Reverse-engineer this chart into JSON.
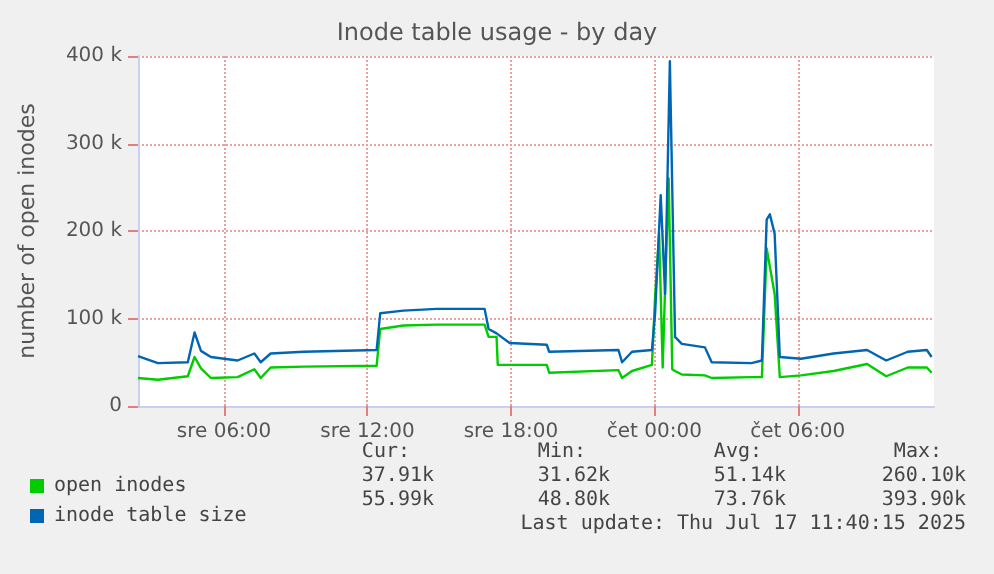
{
  "chart_data": {
    "type": "line",
    "title": "Inode table usage - by day",
    "ylabel": "number of open inodes",
    "xlim": [
      "2025-07-16T02:24",
      "2025-07-17T11:42"
    ],
    "xticks": [
      {
        "value": "2025-07-16T06:00",
        "label": "sre 06:00"
      },
      {
        "value": "2025-07-16T12:00",
        "label": "sre 12:00"
      },
      {
        "value": "2025-07-16T18:00",
        "label": "sre 18:00"
      },
      {
        "value": "2025-07-17T00:00",
        "label": "čet 00:00"
      },
      {
        "value": "2025-07-17T06:00",
        "label": "čet 06:00"
      }
    ],
    "ylim": [
      0,
      400000
    ],
    "yticks": [
      0,
      {
        "value": 100000,
        "label": "100 k"
      },
      {
        "value": 200000,
        "label": "200 k"
      },
      {
        "value": 300000,
        "label": "300 k"
      },
      {
        "value": 400000,
        "label": "400 k"
      }
    ],
    "grid": true,
    "legend": "bottom left",
    "marker": "none",
    "series": [
      {
        "name": "open inodes",
        "color": "#00cc00",
        "x": [
          "2025-07-16T02:24",
          "2025-07-16T03:14",
          "2025-07-16T04:29",
          "2025-07-16T04:46",
          "2025-07-16T05:02",
          "2025-07-16T05:27",
          "2025-07-16T06:34",
          "2025-07-16T07:16",
          "2025-07-16T07:32",
          "2025-07-16T07:57",
          "2025-07-16T09:20",
          "2025-07-16T12:23",
          "2025-07-16T12:32",
          "2025-07-16T13:30",
          "2025-07-16T14:54",
          "2025-07-16T16:54",
          "2025-07-16T17:04",
          "2025-07-16T17:24",
          "2025-07-16T17:27",
          "2025-07-16T19:30",
          "2025-07-16T19:36",
          "2025-07-16T22:30",
          "2025-07-16T22:39",
          "2025-07-16T23:04",
          "2025-07-16T23:54",
          "2025-07-17T00:02",
          "2025-07-17T00:12",
          "2025-07-17T00:21",
          "2025-07-17T00:27",
          "2025-07-17T00:36",
          "2025-07-17T00:45",
          "2025-07-17T00:52",
          "2025-07-17T01:09",
          "2025-07-17T02:07",
          "2025-07-17T02:24",
          "2025-07-17T04:04",
          "2025-07-17T04:30",
          "2025-07-17T04:42",
          "2025-07-17T05:02",
          "2025-07-17T05:15",
          "2025-07-17T06:08",
          "2025-07-17T07:30",
          "2025-07-17T08:54",
          "2025-07-17T09:42",
          "2025-07-17T10:36",
          "2025-07-17T11:24",
          "2025-07-17T11:36"
        ],
        "values": [
          32000,
          30000,
          34000,
          56000,
          43000,
          32000,
          33000,
          42000,
          32000,
          44000,
          45000,
          46000,
          88000,
          92000,
          93000,
          93000,
          79000,
          79000,
          47000,
          47000,
          38000,
          41000,
          32000,
          40000,
          47000,
          125000,
          197000,
          44000,
          134000,
          260000,
          42000,
          40000,
          36000,
          35000,
          32000,
          33000,
          33000,
          180000,
          128000,
          33000,
          35000,
          40000,
          48000,
          34000,
          44000,
          44000,
          38000
        ]
      },
      {
        "name": "inode table size",
        "color": "#0066b3",
        "x": [
          "2025-07-16T02:24",
          "2025-07-16T03:14",
          "2025-07-16T04:29",
          "2025-07-16T04:46",
          "2025-07-16T05:02",
          "2025-07-16T05:27",
          "2025-07-16T06:34",
          "2025-07-16T07:16",
          "2025-07-16T07:32",
          "2025-07-16T07:57",
          "2025-07-16T09:20",
          "2025-07-16T12:23",
          "2025-07-16T12:32",
          "2025-07-16T13:30",
          "2025-07-16T14:54",
          "2025-07-16T16:54",
          "2025-07-16T17:04",
          "2025-07-16T17:24",
          "2025-07-16T17:57",
          "2025-07-16T19:30",
          "2025-07-16T19:36",
          "2025-07-16T22:30",
          "2025-07-16T22:39",
          "2025-07-16T23:04",
          "2025-07-16T23:54",
          "2025-07-17T00:02",
          "2025-07-17T00:16",
          "2025-07-17T00:27",
          "2025-07-17T00:39",
          "2025-07-17T00:52",
          "2025-07-17T01:09",
          "2025-07-17T02:07",
          "2025-07-17T02:24",
          "2025-07-17T04:04",
          "2025-07-17T04:30",
          "2025-07-17T04:42",
          "2025-07-17T04:50",
          "2025-07-17T05:02",
          "2025-07-17T05:15",
          "2025-07-17T06:08",
          "2025-07-17T07:30",
          "2025-07-17T08:54",
          "2025-07-17T09:42",
          "2025-07-17T10:36",
          "2025-07-17T11:24",
          "2025-07-17T11:36"
        ],
        "values": [
          57000,
          49000,
          50000,
          84000,
          63000,
          56000,
          52000,
          60000,
          50000,
          60000,
          62000,
          64000,
          106000,
          109000,
          111000,
          111000,
          88000,
          83000,
          72000,
          70000,
          62000,
          64000,
          50000,
          62000,
          64000,
          106000,
          241000,
          128000,
          394000,
          79000,
          71000,
          67000,
          50000,
          49000,
          52000,
          213000,
          219000,
          197000,
          56000,
          54000,
          60000,
          64000,
          52000,
          62000,
          64000,
          56000
        ]
      }
    ],
    "annotations": [
      "Cur:",
      "Min:",
      "Avg:",
      "Max:",
      "37.91k",
      "31.62k",
      "51.14k",
      "260.10k",
      "55.99k",
      "48.80k",
      "73.76k",
      "393.90k",
      "Last update: Thu Jul 17 11:40:15 2025"
    ]
  }
}
